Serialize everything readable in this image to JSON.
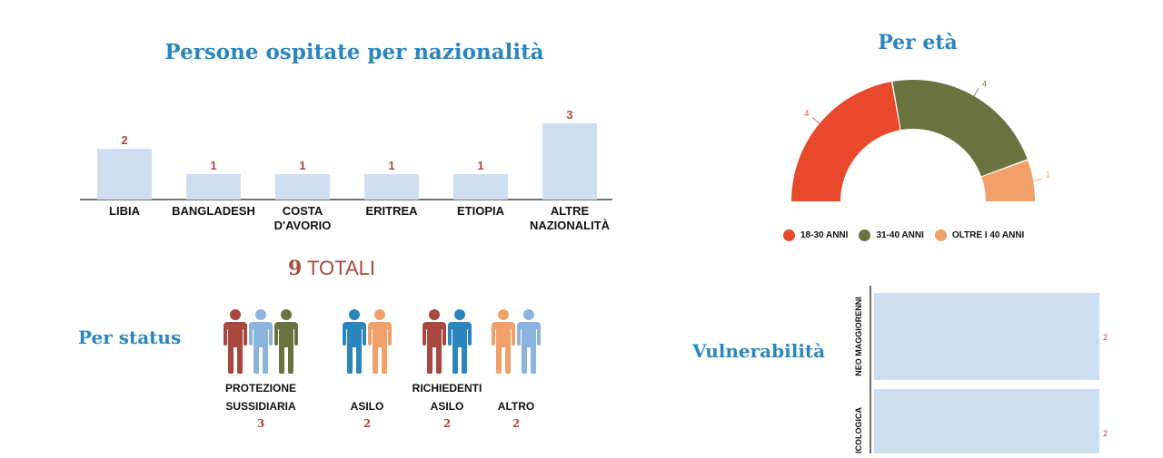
{
  "nationality": {
    "title": "Persone ospitate per nazionalità",
    "totals_number": "9",
    "totals_label": "TOTALI"
  },
  "age": {
    "title": "Per età"
  },
  "status": {
    "title": "Per status",
    "groups": [
      {
        "label_line1": "PROTEZIONE",
        "label_line2": "SUSSIDIARIA",
        "count": "3",
        "colors": [
          "#a8483f",
          "#8ab4de",
          "#6a7340"
        ]
      },
      {
        "label_line1": "",
        "label_line2": "ASILO",
        "count": "2",
        "colors": [
          "#2b86bd",
          "#f0a068"
        ]
      },
      {
        "label_line1": "RICHIEDENTI",
        "label_line2": "ASILO",
        "count": "2",
        "colors": [
          "#a8483f",
          "#2b86bd"
        ]
      },
      {
        "label_line1": "",
        "label_line2": "ALTRO",
        "count": "2",
        "colors": [
          "#f0a068",
          "#8ab4de"
        ]
      }
    ]
  },
  "vulnerability": {
    "title": "Vulnerabilità"
  },
  "chart_data": [
    {
      "type": "bar",
      "categories": [
        "LIBIA",
        "BANGLADESH",
        "COSTA D'AVORIO",
        "ERITREA",
        "ETIOPIA",
        "ALTRE NAZIONALITÀ"
      ],
      "category_lines": [
        [
          "LIBIA"
        ],
        [
          "BANGLADESH"
        ],
        [
          "COSTA",
          "D'AVORIO"
        ],
        [
          "ERITREA"
        ],
        [
          "ETIOPIA"
        ],
        [
          "ALTRE",
          "NAZIONALITÀ"
        ]
      ],
      "values": [
        2,
        1,
        1,
        1,
        1,
        3
      ],
      "title": "Persone ospitate per nazionalità",
      "ylim": [
        0,
        3
      ],
      "bar_color": "#cfdff2",
      "label_color": "#a8483f"
    },
    {
      "type": "pie",
      "variant": "semicircle-donut",
      "title": "Per età",
      "labels": [
        "18-30 ANNI",
        "31-40 ANNI",
        "OLTRE I 40 ANNI"
      ],
      "values": [
        4,
        4,
        1
      ],
      "colors": [
        "#e8492a",
        "#6a7340",
        "#f0a068"
      ],
      "legend": "bottom"
    },
    {
      "type": "bar",
      "orientation": "horizontal",
      "title": "Vulnerabilità",
      "categories": [
        "NEO MAGGIORENNI",
        "PSICOLOGICA"
      ],
      "visible_category_text": [
        "NEO MAGGIORENNI",
        "ICOLOGICA"
      ],
      "values": [
        2,
        2
      ],
      "bar_color": "#cfdff2",
      "label_color": "#a8483f"
    }
  ]
}
